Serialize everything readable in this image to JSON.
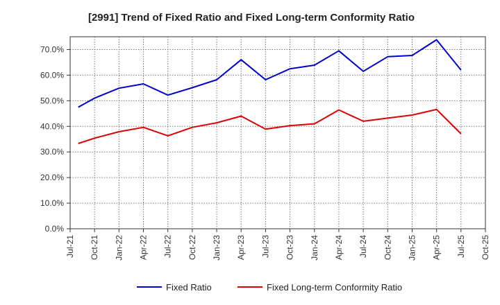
{
  "chart_data": {
    "type": "line",
    "title": "[2991]  Trend of Fixed Ratio and Fixed Long-term Conformity Ratio",
    "xlabel": "",
    "ylabel": "",
    "x_ticks": [
      "Jul-21",
      "Oct-21",
      "Jan-22",
      "Apr-22",
      "Jul-22",
      "Oct-22",
      "Jan-23",
      "Apr-23",
      "Jul-23",
      "Oct-23",
      "Jan-24",
      "Apr-24",
      "Jul-24",
      "Oct-24",
      "Jan-25",
      "Apr-25",
      "Jul-25",
      "Oct-25"
    ],
    "y_ticks": [
      "0.0%",
      "10.0%",
      "20.0%",
      "30.0%",
      "40.0%",
      "50.0%",
      "60.0%",
      "70.0%"
    ],
    "ylim": [
      0,
      75
    ],
    "grid": true,
    "legend_position": "bottom",
    "x": [
      "Aug-21",
      "Oct-21",
      "Jan-22",
      "Apr-22",
      "Jul-22",
      "Oct-22",
      "Jan-23",
      "Apr-23",
      "Jul-23",
      "Oct-23",
      "Jan-24",
      "Apr-24",
      "Jul-24",
      "Oct-24",
      "Jan-25",
      "Apr-25",
      "Jul-25"
    ],
    "series": [
      {
        "name": "Fixed Ratio",
        "color": "#0000cc",
        "values": [
          47.5,
          51.0,
          54.9,
          56.6,
          52.2,
          55.1,
          58.2,
          66.0,
          58.2,
          62.5,
          63.9,
          69.5,
          61.5,
          67.2,
          67.7,
          73.8,
          62.0
        ]
      },
      {
        "name": "Fixed Long-term Conformity Ratio",
        "color": "#dd0000",
        "values": [
          33.3,
          35.4,
          37.9,
          39.6,
          36.3,
          39.6,
          41.4,
          44.0,
          38.9,
          40.3,
          41.0,
          46.4,
          42.0,
          43.2,
          44.4,
          46.6,
          37.1
        ]
      }
    ]
  }
}
